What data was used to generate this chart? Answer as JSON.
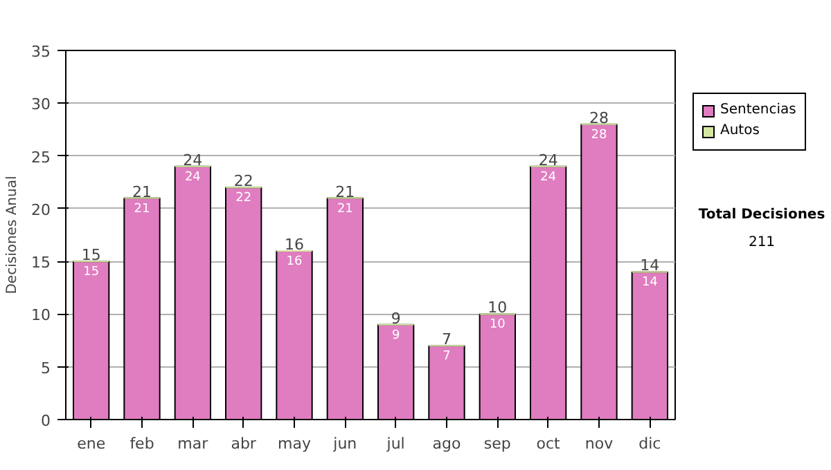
{
  "chart_data": {
    "type": "bar",
    "ylabel": "Decisiones Anual",
    "stacked": true,
    "categories": [
      "ene",
      "feb",
      "mar",
      "abr",
      "may",
      "jun",
      "jul",
      "ago",
      "sep",
      "oct",
      "nov",
      "dic"
    ],
    "series": [
      {
        "name": "Sentencias",
        "color": "#e07cc0",
        "values": [
          15,
          21,
          24,
          22,
          16,
          21,
          9,
          7,
          10,
          24,
          28,
          14
        ]
      },
      {
        "name": "Autos",
        "color": "#d4e8a0",
        "values": [
          0,
          0,
          0,
          0,
          0,
          0,
          0,
          0,
          0,
          0,
          0,
          0
        ],
        "value_labels": [
          null,
          null,
          null,
          null,
          null,
          null,
          null,
          null,
          null,
          null,
          null,
          null
        ]
      }
    ],
    "totals": [
      "15",
      "21",
      "24",
      "22",
      "16",
      "21",
      "9",
      "7",
      "10",
      "24",
      "28",
      "14"
    ],
    "data_labels": true,
    "ylim": [
      0,
      35
    ],
    "yticks": [
      0,
      5,
      10,
      15,
      20,
      25,
      30,
      35
    ],
    "grid": "y",
    "legend": "right",
    "annotations": [
      "Total Decisiones",
      "211"
    ]
  }
}
